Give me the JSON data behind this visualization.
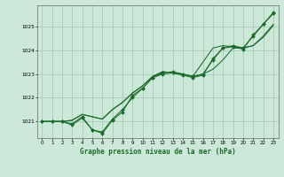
{
  "title": "Graphe pression niveau de la mer (hPa)",
  "background_color": "#cce8d8",
  "grid_color": "#aaccbb",
  "line_color": "#1a6b2a",
  "xlim": [
    -0.5,
    23.5
  ],
  "ylim": [
    1020.3,
    1025.9
  ],
  "yticks": [
    1021,
    1022,
    1023,
    1024,
    1025
  ],
  "xticks": [
    0,
    1,
    2,
    3,
    4,
    5,
    6,
    7,
    8,
    9,
    10,
    11,
    12,
    13,
    14,
    15,
    16,
    17,
    18,
    19,
    20,
    21,
    22,
    23
  ],
  "series_with_markers": [
    [
      1021.0,
      1021.0,
      1021.0,
      1020.9,
      1021.2,
      1020.65,
      1020.55,
      1021.1,
      1021.5,
      1022.0,
      1022.4,
      1022.85,
      1023.05,
      1023.1,
      1023.0,
      1022.9,
      1023.0,
      1023.6,
      1024.1,
      1024.2,
      1024.1,
      1024.6,
      1025.1,
      1025.6
    ],
    [
      1021.0,
      1021.0,
      1021.0,
      1020.85,
      1021.15,
      1020.65,
      1020.5,
      1021.05,
      1021.4,
      1022.1,
      1022.4,
      1022.85,
      1023.0,
      1023.05,
      1022.95,
      1022.85,
      1022.95,
      1023.65,
      1024.1,
      1024.15,
      1024.05,
      1024.65,
      1025.1,
      1025.55
    ]
  ],
  "series_plain": [
    [
      1021.0,
      1021.0,
      1021.0,
      1021.05,
      1021.3,
      1021.2,
      1021.1,
      1021.5,
      1021.8,
      1022.2,
      1022.5,
      1022.9,
      1023.1,
      1023.05,
      1023.0,
      1022.9,
      1023.0,
      1023.2,
      1023.6,
      1024.1,
      1024.1,
      1024.2,
      1024.6,
      1025.1
    ],
    [
      1021.0,
      1021.0,
      1021.0,
      1021.05,
      1021.3,
      1021.2,
      1021.1,
      1021.5,
      1021.8,
      1022.2,
      1022.5,
      1022.9,
      1023.1,
      1023.05,
      1023.0,
      1022.9,
      1023.5,
      1024.1,
      1024.2,
      1024.15,
      1024.1,
      1024.2,
      1024.55,
      1025.05
    ]
  ]
}
